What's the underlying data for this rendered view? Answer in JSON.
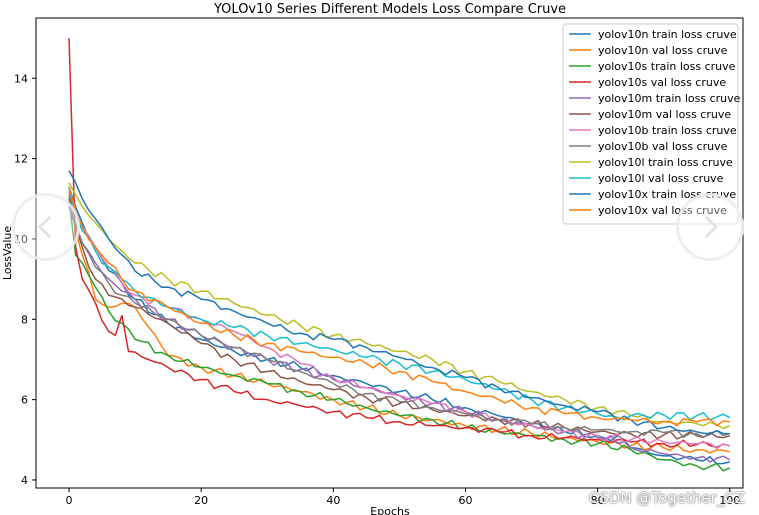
{
  "chart_data": {
    "type": "line",
    "title": "YOLOv10 Series Different Models Loss Compare Cruve",
    "xlabel": "Epochs",
    "ylabel": "LossValue",
    "xlim": [
      -5,
      102
    ],
    "ylim": [
      3.8,
      15.5
    ],
    "xticks": [
      0,
      20,
      40,
      60,
      80,
      100
    ],
    "yticks": [
      4,
      6,
      8,
      10,
      12,
      14
    ],
    "legend_position": "top-right",
    "series": [
      {
        "name": "yolov10n train loss cruve",
        "color": "#1f77b4",
        "anchors": [
          [
            0,
            11.3
          ],
          [
            1,
            10.8
          ],
          [
            2,
            10.4
          ],
          [
            3,
            10.0
          ],
          [
            5,
            9.5
          ],
          [
            8,
            8.9
          ],
          [
            10,
            8.5
          ],
          [
            15,
            7.9
          ],
          [
            20,
            7.5
          ],
          [
            25,
            7.2
          ],
          [
            30,
            7.0
          ],
          [
            35,
            6.8
          ],
          [
            40,
            6.6
          ],
          [
            45,
            6.4
          ],
          [
            50,
            6.2
          ],
          [
            55,
            6.0
          ],
          [
            60,
            5.8
          ],
          [
            65,
            5.6
          ],
          [
            70,
            5.4
          ],
          [
            75,
            5.2
          ],
          [
            80,
            5.1
          ],
          [
            84,
            5.0
          ],
          [
            85,
            4.8
          ],
          [
            90,
            4.6
          ],
          [
            95,
            4.5
          ],
          [
            100,
            4.45
          ]
        ]
      },
      {
        "name": "yolov10n val loss cruve",
        "color": "#ff7f0e",
        "anchors": [
          [
            0,
            11.1
          ],
          [
            1,
            10.2
          ],
          [
            2,
            9.6
          ],
          [
            4,
            8.5
          ],
          [
            6,
            8.3
          ],
          [
            8,
            8.4
          ],
          [
            10,
            8.3
          ],
          [
            15,
            7.1
          ],
          [
            20,
            6.8
          ],
          [
            25,
            6.6
          ],
          [
            30,
            6.4
          ],
          [
            35,
            6.2
          ],
          [
            40,
            6.0
          ],
          [
            45,
            5.8
          ],
          [
            50,
            5.6
          ],
          [
            55,
            5.5
          ],
          [
            60,
            5.35
          ],
          [
            65,
            5.25
          ],
          [
            70,
            5.15
          ],
          [
            75,
            5.05
          ],
          [
            80,
            4.95
          ],
          [
            85,
            4.85
          ],
          [
            90,
            4.8
          ],
          [
            95,
            4.75
          ],
          [
            100,
            4.7
          ]
        ]
      },
      {
        "name": "yolov10s train loss cruve",
        "color": "#2ca02c",
        "anchors": [
          [
            0,
            11.0
          ],
          [
            1,
            9.6
          ],
          [
            2,
            9.4
          ],
          [
            4,
            8.8
          ],
          [
            6,
            8.2
          ],
          [
            8,
            7.9
          ],
          [
            10,
            7.5
          ],
          [
            15,
            7.1
          ],
          [
            20,
            6.8
          ],
          [
            25,
            6.6
          ],
          [
            30,
            6.4
          ],
          [
            35,
            6.2
          ],
          [
            40,
            6.0
          ],
          [
            45,
            5.8
          ],
          [
            50,
            5.6
          ],
          [
            55,
            5.5
          ],
          [
            60,
            5.3
          ],
          [
            65,
            5.2
          ],
          [
            70,
            5.1
          ],
          [
            75,
            5.0
          ],
          [
            80,
            4.9
          ],
          [
            85,
            4.75
          ],
          [
            90,
            4.5
          ],
          [
            95,
            4.35
          ],
          [
            100,
            4.3
          ]
        ]
      },
      {
        "name": "yolov10s val loss cruve",
        "color": "#d62728",
        "anchors": [
          [
            0,
            15.0
          ],
          [
            1,
            9.8
          ],
          [
            2,
            9.0
          ],
          [
            4,
            8.4
          ],
          [
            6,
            7.7
          ],
          [
            7,
            7.6
          ],
          [
            8,
            8.1
          ],
          [
            9,
            7.2
          ],
          [
            12,
            7.0
          ],
          [
            15,
            6.8
          ],
          [
            20,
            6.5
          ],
          [
            25,
            6.2
          ],
          [
            30,
            6.0
          ],
          [
            35,
            5.85
          ],
          [
            40,
            5.7
          ],
          [
            45,
            5.55
          ],
          [
            50,
            5.45
          ],
          [
            55,
            5.35
          ],
          [
            60,
            5.3
          ],
          [
            65,
            5.2
          ],
          [
            70,
            5.1
          ],
          [
            75,
            5.05
          ],
          [
            80,
            5.0
          ],
          [
            85,
            4.95
          ],
          [
            90,
            4.9
          ],
          [
            95,
            4.88
          ],
          [
            100,
            4.85
          ]
        ]
      },
      {
        "name": "yolov10m train loss cruve",
        "color": "#9467bd",
        "anchors": [
          [
            0,
            10.8
          ],
          [
            1,
            10.3
          ],
          [
            2,
            9.9
          ],
          [
            4,
            9.4
          ],
          [
            6,
            9.0
          ],
          [
            8,
            8.7
          ],
          [
            10,
            8.5
          ],
          [
            15,
            8.0
          ],
          [
            20,
            7.6
          ],
          [
            25,
            7.3
          ],
          [
            30,
            7.0
          ],
          [
            35,
            6.75
          ],
          [
            40,
            6.5
          ],
          [
            45,
            6.3
          ],
          [
            50,
            6.1
          ],
          [
            55,
            5.9
          ],
          [
            60,
            5.7
          ],
          [
            65,
            5.5
          ],
          [
            70,
            5.35
          ],
          [
            75,
            5.2
          ],
          [
            80,
            5.05
          ],
          [
            84,
            4.95
          ],
          [
            85,
            4.8
          ],
          [
            90,
            4.65
          ],
          [
            95,
            4.55
          ],
          [
            100,
            4.5
          ]
        ]
      },
      {
        "name": "yolov10m val loss cruve",
        "color": "#8c564b",
        "anchors": [
          [
            0,
            11.2
          ],
          [
            1,
            10.3
          ],
          [
            2,
            9.8
          ],
          [
            4,
            9.0
          ],
          [
            6,
            8.6
          ],
          [
            8,
            8.5
          ],
          [
            10,
            8.3
          ],
          [
            15,
            7.9
          ],
          [
            20,
            7.4
          ],
          [
            25,
            7.0
          ],
          [
            30,
            6.7
          ],
          [
            35,
            6.45
          ],
          [
            40,
            6.25
          ],
          [
            45,
            6.05
          ],
          [
            50,
            5.9
          ],
          [
            55,
            5.75
          ],
          [
            60,
            5.6
          ],
          [
            65,
            5.5
          ],
          [
            70,
            5.4
          ],
          [
            75,
            5.3
          ],
          [
            80,
            5.2
          ],
          [
            85,
            5.15
          ],
          [
            90,
            5.12
          ],
          [
            95,
            5.1
          ],
          [
            100,
            5.1
          ]
        ]
      },
      {
        "name": "yolov10b train loss cruve",
        "color": "#e377c2",
        "anchors": [
          [
            0,
            10.9
          ],
          [
            1,
            10.6
          ],
          [
            2,
            10.3
          ],
          [
            4,
            9.8
          ],
          [
            6,
            9.3
          ],
          [
            8,
            8.9
          ],
          [
            10,
            8.6
          ],
          [
            15,
            8.3
          ],
          [
            20,
            8.0
          ],
          [
            25,
            7.7
          ],
          [
            30,
            7.3
          ],
          [
            35,
            6.9
          ],
          [
            40,
            6.55
          ],
          [
            45,
            6.3
          ],
          [
            50,
            6.1
          ],
          [
            55,
            5.9
          ],
          [
            60,
            5.7
          ],
          [
            65,
            5.5
          ],
          [
            70,
            5.35
          ],
          [
            75,
            5.2
          ],
          [
            80,
            5.1
          ],
          [
            85,
            5.0
          ],
          [
            90,
            4.95
          ],
          [
            95,
            4.9
          ],
          [
            100,
            4.85
          ]
        ]
      },
      {
        "name": "yolov10b val loss cruve",
        "color": "#7f7f7f",
        "anchors": [
          [
            0,
            11.0
          ],
          [
            1,
            10.4
          ],
          [
            2,
            9.9
          ],
          [
            4,
            9.3
          ],
          [
            6,
            8.9
          ],
          [
            8,
            8.6
          ],
          [
            10,
            8.4
          ],
          [
            15,
            8.0
          ],
          [
            20,
            7.6
          ],
          [
            25,
            7.3
          ],
          [
            30,
            7.0
          ],
          [
            35,
            6.7
          ],
          [
            40,
            6.4
          ],
          [
            45,
            6.15
          ],
          [
            50,
            5.95
          ],
          [
            55,
            5.8
          ],
          [
            60,
            5.65
          ],
          [
            65,
            5.5
          ],
          [
            70,
            5.4
          ],
          [
            75,
            5.3
          ],
          [
            80,
            5.25
          ],
          [
            85,
            5.2
          ],
          [
            90,
            5.18
          ],
          [
            95,
            5.15
          ],
          [
            100,
            5.15
          ]
        ]
      },
      {
        "name": "yolov10l train loss cruve",
        "color": "#bcbd22",
        "anchors": [
          [
            0,
            11.4
          ],
          [
            1,
            11.1
          ],
          [
            2,
            10.8
          ],
          [
            4,
            10.4
          ],
          [
            6,
            10.0
          ],
          [
            8,
            9.7
          ],
          [
            10,
            9.4
          ],
          [
            15,
            9.0
          ],
          [
            20,
            8.7
          ],
          [
            25,
            8.4
          ],
          [
            30,
            8.1
          ],
          [
            35,
            7.85
          ],
          [
            40,
            7.6
          ],
          [
            45,
            7.4
          ],
          [
            50,
            7.2
          ],
          [
            55,
            7.0
          ],
          [
            60,
            6.7
          ],
          [
            65,
            6.45
          ],
          [
            70,
            6.2
          ],
          [
            75,
            6.0
          ],
          [
            80,
            5.8
          ],
          [
            85,
            5.6
          ],
          [
            90,
            5.45
          ],
          [
            95,
            5.4
          ],
          [
            100,
            5.35
          ]
        ]
      },
      {
        "name": "yolov10l val loss cruve",
        "color": "#17becf",
        "anchors": [
          [
            0,
            11.2
          ],
          [
            1,
            10.6
          ],
          [
            2,
            10.2
          ],
          [
            4,
            9.7
          ],
          [
            6,
            9.3
          ],
          [
            8,
            9.0
          ],
          [
            10,
            8.7
          ],
          [
            15,
            8.3
          ],
          [
            20,
            8.0
          ],
          [
            25,
            7.8
          ],
          [
            30,
            7.6
          ],
          [
            35,
            7.4
          ],
          [
            40,
            7.25
          ],
          [
            45,
            7.05
          ],
          [
            50,
            6.9
          ],
          [
            55,
            6.7
          ],
          [
            60,
            6.5
          ],
          [
            65,
            6.25
          ],
          [
            70,
            6.0
          ],
          [
            75,
            5.8
          ],
          [
            80,
            5.65
          ],
          [
            84,
            5.5
          ],
          [
            85,
            5.6
          ],
          [
            90,
            5.62
          ],
          [
            95,
            5.6
          ],
          [
            100,
            5.55
          ]
        ]
      },
      {
        "name": "yolov10x train loss cruve",
        "color": "#1f77b4",
        "anchors": [
          [
            0,
            11.7
          ],
          [
            1,
            11.4
          ],
          [
            2,
            11.0
          ],
          [
            4,
            10.5
          ],
          [
            6,
            10.0
          ],
          [
            8,
            9.6
          ],
          [
            10,
            9.2
          ],
          [
            15,
            8.8
          ],
          [
            20,
            8.5
          ],
          [
            25,
            8.2
          ],
          [
            30,
            7.9
          ],
          [
            35,
            7.65
          ],
          [
            40,
            7.5
          ],
          [
            45,
            7.3
          ],
          [
            50,
            7.05
          ],
          [
            55,
            6.8
          ],
          [
            60,
            6.55
          ],
          [
            65,
            6.3
          ],
          [
            70,
            6.05
          ],
          [
            75,
            5.85
          ],
          [
            80,
            5.7
          ],
          [
            85,
            5.5
          ],
          [
            90,
            5.3
          ],
          [
            95,
            5.2
          ],
          [
            100,
            5.15
          ]
        ]
      },
      {
        "name": "yolov10x val loss cruve",
        "color": "#ff7f0e",
        "anchors": [
          [
            0,
            11.3
          ],
          [
            1,
            10.7
          ],
          [
            2,
            10.3
          ],
          [
            4,
            9.8
          ],
          [
            6,
            9.4
          ],
          [
            8,
            9.0
          ],
          [
            10,
            8.7
          ],
          [
            15,
            8.3
          ],
          [
            20,
            7.9
          ],
          [
            25,
            7.6
          ],
          [
            30,
            7.4
          ],
          [
            35,
            7.2
          ],
          [
            40,
            7.05
          ],
          [
            45,
            6.9
          ],
          [
            50,
            6.7
          ],
          [
            55,
            6.45
          ],
          [
            60,
            6.2
          ],
          [
            65,
            6.0
          ],
          [
            70,
            5.8
          ],
          [
            75,
            5.65
          ],
          [
            80,
            5.55
          ],
          [
            85,
            5.5
          ],
          [
            90,
            5.45
          ],
          [
            95,
            5.45
          ],
          [
            100,
            5.45
          ]
        ]
      }
    ]
  },
  "watermark": "CSDN @Together_CZ",
  "icons": {
    "prev": "chevron-left-icon",
    "next": "chevron-right-icon"
  }
}
